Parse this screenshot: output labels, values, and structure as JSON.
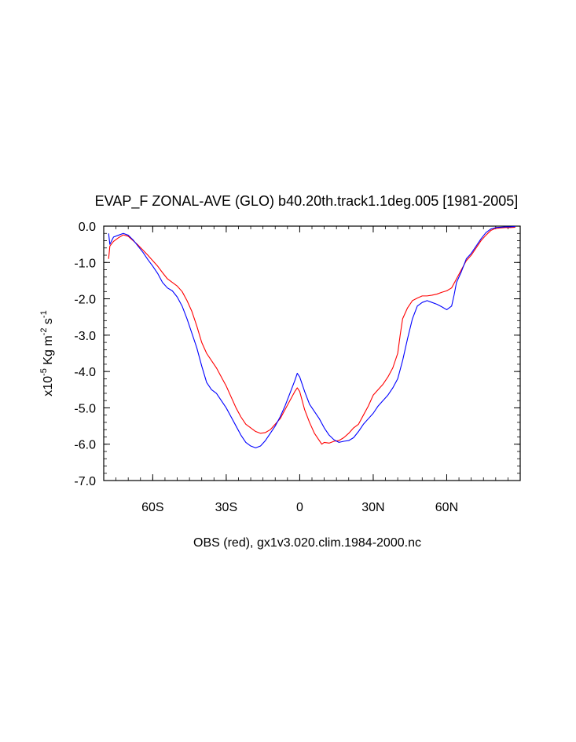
{
  "chart_data": {
    "type": "line",
    "title": "EVAP_F ZONAL-AVE (GLO) b40.20th.track1.1deg.005 [1981-2005]",
    "xlabel": "OBS (red), gx1v3.020.clim.1984-2000.nc",
    "ylabel": {
      "base": "x10",
      "exp1": "-5",
      "unit1": " Kg m",
      "exp2": "-2",
      "unit2": " s",
      "exp3": "-1"
    },
    "xlim": [
      -80,
      90
    ],
    "ylim": [
      -7.0,
      0.0
    ],
    "x_ticks": [
      {
        "value": -60,
        "label": "60S"
      },
      {
        "value": -30,
        "label": "30S"
      },
      {
        "value": 0,
        "label": "0"
      },
      {
        "value": 30,
        "label": "30N"
      },
      {
        "value": 60,
        "label": "60N"
      }
    ],
    "y_ticks": [
      {
        "value": 0.0,
        "label": "0.0"
      },
      {
        "value": -1.0,
        "label": "-1.0"
      },
      {
        "value": -2.0,
        "label": "-2.0"
      },
      {
        "value": -3.0,
        "label": "-3.0"
      },
      {
        "value": -4.0,
        "label": "-4.0"
      },
      {
        "value": -5.0,
        "label": "-5.0"
      },
      {
        "value": -6.0,
        "label": "-6.0"
      },
      {
        "value": -7.0,
        "label": "-7.0"
      }
    ],
    "grid": false,
    "series": [
      {
        "color": "#ff0000",
        "points": [
          [
            -78,
            -0.9
          ],
          [
            -77.5,
            -0.55
          ],
          [
            -76,
            -0.42
          ],
          [
            -74,
            -0.32
          ],
          [
            -72,
            -0.24
          ],
          [
            -70,
            -0.28
          ],
          [
            -68,
            -0.4
          ],
          [
            -66,
            -0.52
          ],
          [
            -64,
            -0.66
          ],
          [
            -62,
            -0.8
          ],
          [
            -60,
            -0.95
          ],
          [
            -58,
            -1.1
          ],
          [
            -56,
            -1.28
          ],
          [
            -54,
            -1.45
          ],
          [
            -52,
            -1.55
          ],
          [
            -50,
            -1.65
          ],
          [
            -48,
            -1.8
          ],
          [
            -46,
            -2.05
          ],
          [
            -44,
            -2.35
          ],
          [
            -42,
            -2.75
          ],
          [
            -40,
            -3.2
          ],
          [
            -38,
            -3.5
          ],
          [
            -36,
            -3.7
          ],
          [
            -34,
            -3.9
          ],
          [
            -32,
            -4.15
          ],
          [
            -30,
            -4.4
          ],
          [
            -28,
            -4.7
          ],
          [
            -26,
            -5.0
          ],
          [
            -24,
            -5.25
          ],
          [
            -22,
            -5.45
          ],
          [
            -20,
            -5.55
          ],
          [
            -18,
            -5.65
          ],
          [
            -16,
            -5.7
          ],
          [
            -14,
            -5.68
          ],
          [
            -12,
            -5.6
          ],
          [
            -10,
            -5.45
          ],
          [
            -8,
            -5.3
          ],
          [
            -6,
            -5.05
          ],
          [
            -4,
            -4.8
          ],
          [
            -2,
            -4.55
          ],
          [
            -1,
            -4.45
          ],
          [
            0,
            -4.55
          ],
          [
            2,
            -5.05
          ],
          [
            4,
            -5.4
          ],
          [
            6,
            -5.7
          ],
          [
            8,
            -5.9
          ],
          [
            9,
            -6.0
          ],
          [
            10,
            -5.95
          ],
          [
            12,
            -5.97
          ],
          [
            14,
            -5.92
          ],
          [
            16,
            -5.9
          ],
          [
            18,
            -5.82
          ],
          [
            20,
            -5.7
          ],
          [
            22,
            -5.55
          ],
          [
            24,
            -5.45
          ],
          [
            26,
            -5.2
          ],
          [
            28,
            -4.95
          ],
          [
            30,
            -4.65
          ],
          [
            32,
            -4.5
          ],
          [
            34,
            -4.35
          ],
          [
            36,
            -4.15
          ],
          [
            38,
            -3.9
          ],
          [
            40,
            -3.5
          ],
          [
            41,
            -3.0
          ],
          [
            42,
            -2.55
          ],
          [
            44,
            -2.25
          ],
          [
            46,
            -2.05
          ],
          [
            48,
            -1.98
          ],
          [
            50,
            -1.92
          ],
          [
            52,
            -1.92
          ],
          [
            54,
            -1.9
          ],
          [
            56,
            -1.87
          ],
          [
            58,
            -1.82
          ],
          [
            60,
            -1.78
          ],
          [
            62,
            -1.7
          ],
          [
            64,
            -1.45
          ],
          [
            66,
            -1.2
          ],
          [
            68,
            -0.95
          ],
          [
            70,
            -0.8
          ],
          [
            72,
            -0.6
          ],
          [
            74,
            -0.4
          ],
          [
            76,
            -0.25
          ],
          [
            78,
            -0.12
          ],
          [
            80,
            -0.06
          ],
          [
            82,
            -0.05
          ],
          [
            84,
            -0.04
          ],
          [
            86,
            -0.04
          ],
          [
            88,
            -0.03
          ]
        ]
      },
      {
        "color": "#0000ff",
        "points": [
          [
            -78,
            -0.2
          ],
          [
            -77.5,
            -0.5
          ],
          [
            -76,
            -0.3
          ],
          [
            -74,
            -0.25
          ],
          [
            -72,
            -0.2
          ],
          [
            -70,
            -0.25
          ],
          [
            -68,
            -0.38
          ],
          [
            -66,
            -0.55
          ],
          [
            -64,
            -0.72
          ],
          [
            -62,
            -0.92
          ],
          [
            -60,
            -1.1
          ],
          [
            -58,
            -1.3
          ],
          [
            -56,
            -1.55
          ],
          [
            -54,
            -1.7
          ],
          [
            -52,
            -1.78
          ],
          [
            -50,
            -1.95
          ],
          [
            -48,
            -2.2
          ],
          [
            -46,
            -2.55
          ],
          [
            -44,
            -2.95
          ],
          [
            -42,
            -3.35
          ],
          [
            -40,
            -3.85
          ],
          [
            -38,
            -4.3
          ],
          [
            -36,
            -4.5
          ],
          [
            -34,
            -4.6
          ],
          [
            -32,
            -4.8
          ],
          [
            -30,
            -5.0
          ],
          [
            -28,
            -5.25
          ],
          [
            -26,
            -5.5
          ],
          [
            -24,
            -5.75
          ],
          [
            -22,
            -5.95
          ],
          [
            -20,
            -6.05
          ],
          [
            -18,
            -6.1
          ],
          [
            -16,
            -6.05
          ],
          [
            -14,
            -5.9
          ],
          [
            -12,
            -5.7
          ],
          [
            -10,
            -5.5
          ],
          [
            -8,
            -5.25
          ],
          [
            -6,
            -4.95
          ],
          [
            -4,
            -4.6
          ],
          [
            -2,
            -4.25
          ],
          [
            -1,
            -4.05
          ],
          [
            0,
            -4.15
          ],
          [
            2,
            -4.55
          ],
          [
            4,
            -4.9
          ],
          [
            6,
            -5.1
          ],
          [
            8,
            -5.3
          ],
          [
            10,
            -5.55
          ],
          [
            12,
            -5.75
          ],
          [
            14,
            -5.88
          ],
          [
            16,
            -5.95
          ],
          [
            18,
            -5.92
          ],
          [
            20,
            -5.9
          ],
          [
            22,
            -5.82
          ],
          [
            24,
            -5.65
          ],
          [
            26,
            -5.45
          ],
          [
            28,
            -5.3
          ],
          [
            30,
            -5.15
          ],
          [
            32,
            -4.95
          ],
          [
            34,
            -4.8
          ],
          [
            36,
            -4.65
          ],
          [
            38,
            -4.45
          ],
          [
            40,
            -4.2
          ],
          [
            42,
            -3.7
          ],
          [
            44,
            -3.1
          ],
          [
            46,
            -2.55
          ],
          [
            48,
            -2.2
          ],
          [
            50,
            -2.1
          ],
          [
            52,
            -2.05
          ],
          [
            54,
            -2.1
          ],
          [
            56,
            -2.15
          ],
          [
            58,
            -2.22
          ],
          [
            60,
            -2.3
          ],
          [
            62,
            -2.2
          ],
          [
            63,
            -1.9
          ],
          [
            64,
            -1.55
          ],
          [
            66,
            -1.25
          ],
          [
            68,
            -0.9
          ],
          [
            70,
            -0.75
          ],
          [
            72,
            -0.55
          ],
          [
            74,
            -0.35
          ],
          [
            76,
            -0.18
          ],
          [
            78,
            -0.08
          ],
          [
            80,
            -0.04
          ],
          [
            82,
            -0.03
          ],
          [
            84,
            -0.02
          ],
          [
            86,
            -0.02
          ],
          [
            88,
            -0.01
          ]
        ]
      }
    ]
  }
}
